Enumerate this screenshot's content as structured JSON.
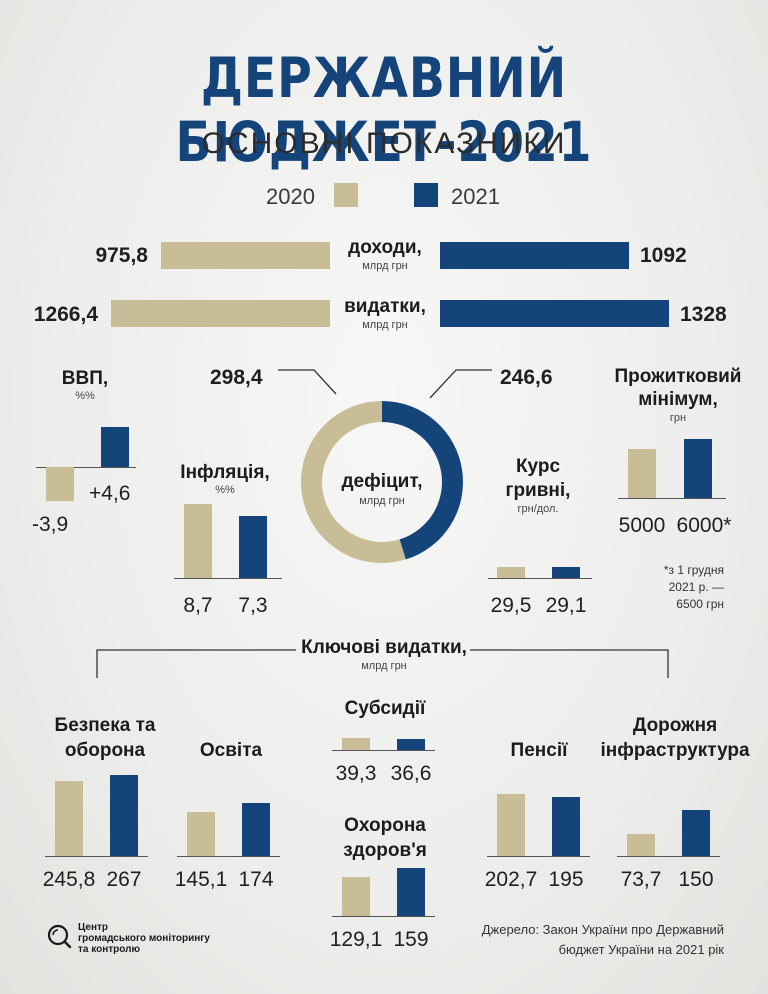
{
  "title": "ДЕРЖАВНИЙ БЮДЖЕТ-2021",
  "subtitle": "ОСНОВНІ ПОКАЗНИКИ",
  "colors": {
    "y2020": "#c9bd97",
    "y2021": "#15447a"
  },
  "legend": [
    "2020",
    "2021"
  ],
  "chart_data": [
    {
      "type": "bar",
      "id": "revenue-expense",
      "categories": [
        "доходи,",
        "видатки,"
      ],
      "unit": "млрд грн",
      "series": [
        {
          "name": "2020",
          "values": [
            975.8,
            1266.4
          ],
          "labels": [
            "975,8",
            "1266,4"
          ]
        },
        {
          "name": "2021",
          "values": [
            1092,
            1328
          ],
          "labels": [
            "1092",
            "1328"
          ]
        }
      ]
    },
    {
      "type": "bar",
      "id": "gdp",
      "title": "ВВП,",
      "unit": "%%",
      "series": [
        {
          "name": "2020",
          "values": [
            -3.9
          ],
          "labels": [
            "-3,9"
          ]
        },
        {
          "name": "2021",
          "values": [
            4.6
          ],
          "labels": [
            "+4,6"
          ]
        }
      ]
    },
    {
      "type": "pie",
      "id": "deficit",
      "title": "дефіцит,",
      "unit": "млрд грн",
      "values": [
        298.4,
        246.6
      ],
      "labels": [
        "298,4",
        "246,6"
      ],
      "slice_names": [
        "2020",
        "2021"
      ]
    },
    {
      "type": "bar",
      "id": "inflation",
      "title": "Інфляція,",
      "unit": "%%",
      "series": [
        {
          "name": "2020",
          "values": [
            8.7
          ],
          "labels": [
            "8,7"
          ]
        },
        {
          "name": "2021",
          "values": [
            7.3
          ],
          "labels": [
            "7,3"
          ]
        }
      ]
    },
    {
      "type": "bar",
      "id": "exchange",
      "title": "Курс гривні,",
      "unit": "грн/дол.",
      "series": [
        {
          "name": "2020",
          "values": [
            29.5
          ],
          "labels": [
            "29,5"
          ]
        },
        {
          "name": "2021",
          "values": [
            29.1
          ],
          "labels": [
            "29,1"
          ]
        }
      ]
    },
    {
      "type": "bar",
      "id": "subsistence",
      "title": "Прожитковий мінімум,",
      "unit": "грн",
      "series": [
        {
          "name": "2020",
          "values": [
            5000
          ],
          "labels": [
            "5000"
          ]
        },
        {
          "name": "2021",
          "values": [
            6000
          ],
          "labels": [
            "6000*"
          ]
        }
      ]
    },
    {
      "type": "bar",
      "id": "key-expenditures",
      "title": "Ключові видатки,",
      "unit": "млрд грн",
      "categories": [
        "Безпека та оборона",
        "Освіта",
        "Субсидії",
        "Охорона здоров'я",
        "Пенсії",
        "Дорожня інфраструктура"
      ],
      "series": [
        {
          "name": "2020",
          "values": [
            245.8,
            145.1,
            39.3,
            129.1,
            202.7,
            73.7
          ],
          "labels": [
            "245,8",
            "145,1",
            "39,3",
            "129,1",
            "202,7",
            "73,7"
          ]
        },
        {
          "name": "2021",
          "values": [
            267,
            174,
            36.6,
            159,
            195,
            150
          ],
          "labels": [
            "267",
            "174",
            "36,6",
            "159",
            "195",
            "150"
          ]
        }
      ]
    }
  ],
  "subsistence_note": [
    "*з 1 грудня",
    "2021 р. —",
    "6500 грн"
  ],
  "logo_text": [
    "Центр",
    "громадського моніторингу",
    "та контролю"
  ],
  "source": [
    "Джерело: Закон України про Державний",
    "бюджет України на 2021 рік"
  ]
}
